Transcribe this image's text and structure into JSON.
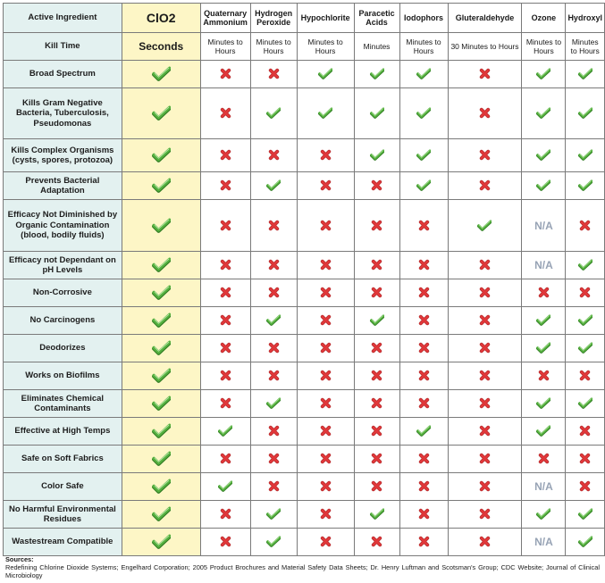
{
  "header_label": "Active Ingredient",
  "kill_label": "Kill Time",
  "columns": [
    {
      "name": "ClO2",
      "kill": "Seconds"
    },
    {
      "name": "Quaternary Ammonium",
      "kill": "Minutes to Hours"
    },
    {
      "name": "Hydrogen Peroxide",
      "kill": "Minutes to Hours"
    },
    {
      "name": "Hypochlorite",
      "kill": "Minutes to Hours"
    },
    {
      "name": "Paracetic Acids",
      "kill": "Minutes"
    },
    {
      "name": "Iodophors",
      "kill": "Minutes to Hours"
    },
    {
      "name": "Gluteraldehyde",
      "kill": "30 Minutes to Hours"
    },
    {
      "name": "Ozone",
      "kill": "Minutes to Hours"
    },
    {
      "name": "Hydroxyl",
      "kill": "Minutes to Hours"
    }
  ],
  "rows": [
    {
      "label": "Broad Spectrum",
      "marks": [
        "yes",
        "no",
        "no",
        "yes",
        "yes",
        "yes",
        "no",
        "yes",
        "yes"
      ]
    },
    {
      "label": "Kills Gram Negative Bacteria, Tuberculosis, Pseudomonas",
      "marks": [
        "yes",
        "no",
        "yes",
        "yes",
        "yes",
        "yes",
        "no",
        "yes",
        "yes"
      ]
    },
    {
      "label": "Kills Complex Organisms (cysts, spores, protozoa)",
      "marks": [
        "yes",
        "no",
        "no",
        "no",
        "yes",
        "yes",
        "no",
        "yes",
        "yes"
      ]
    },
    {
      "label": "Prevents Bacterial Adaptation",
      "marks": [
        "yes",
        "no",
        "yes",
        "no",
        "no",
        "yes",
        "no",
        "yes",
        "yes"
      ]
    },
    {
      "label": "Efficacy Not Diminished by Organic Contamination (blood, bodily fluids)",
      "marks": [
        "yes",
        "no",
        "no",
        "no",
        "no",
        "no",
        "yes",
        "N/A",
        "no"
      ]
    },
    {
      "label": "Efficacy not Dependant on pH Levels",
      "marks": [
        "yes",
        "no",
        "no",
        "no",
        "no",
        "no",
        "no",
        "N/A",
        "yes"
      ]
    },
    {
      "label": "Non-Corrosive",
      "marks": [
        "yes",
        "no",
        "no",
        "no",
        "no",
        "no",
        "no",
        "no",
        "no"
      ]
    },
    {
      "label": "No Carcinogens",
      "marks": [
        "yes",
        "no",
        "yes",
        "no",
        "yes",
        "no",
        "no",
        "yes",
        "yes"
      ]
    },
    {
      "label": "Deodorizes",
      "marks": [
        "yes",
        "no",
        "no",
        "no",
        "no",
        "no",
        "no",
        "yes",
        "yes"
      ]
    },
    {
      "label": "Works on Biofilms",
      "marks": [
        "yes",
        "no",
        "no",
        "no",
        "no",
        "no",
        "no",
        "no",
        "no"
      ]
    },
    {
      "label": "Eliminates Chemical Contaminants",
      "marks": [
        "yes",
        "no",
        "yes",
        "no",
        "no",
        "no",
        "no",
        "yes",
        "yes"
      ]
    },
    {
      "label": "Effective at High Temps",
      "marks": [
        "yes",
        "yes",
        "no",
        "no",
        "no",
        "yes",
        "no",
        "yes",
        "no"
      ]
    },
    {
      "label": "Safe on Soft Fabrics",
      "marks": [
        "yes",
        "no",
        "no",
        "no",
        "no",
        "no",
        "no",
        "no",
        "no"
      ]
    },
    {
      "label": "Color Safe",
      "marks": [
        "yes",
        "yes",
        "no",
        "no",
        "no",
        "no",
        "no",
        "N/A",
        "no"
      ]
    },
    {
      "label": "No Harmful Environmental Residues",
      "marks": [
        "yes",
        "no",
        "yes",
        "no",
        "yes",
        "no",
        "no",
        "yes",
        "yes"
      ]
    },
    {
      "label": "Wastestream Compatible",
      "marks": [
        "yes",
        "no",
        "yes",
        "no",
        "no",
        "no",
        "no",
        "N/A",
        "yes"
      ]
    }
  ],
  "sources_title": "Sources:",
  "sources_text": "Redefining Chlorine Dioxide Systems; Engelhard Corporation; 2005 Product Brochures and Material Safety Data Sheets; Dr. Henry Luftman and Scotsman's Group; CDC Website; Journal of Clinical Microbiology",
  "colors": {
    "check": "#55b03f",
    "cross": "#e0383a",
    "label_bg": "#e3f1f0",
    "clo2_bg": "#fdf6c6",
    "na": "#97a3b5"
  },
  "icons": {
    "yes": "check-icon",
    "no": "cross-icon"
  }
}
